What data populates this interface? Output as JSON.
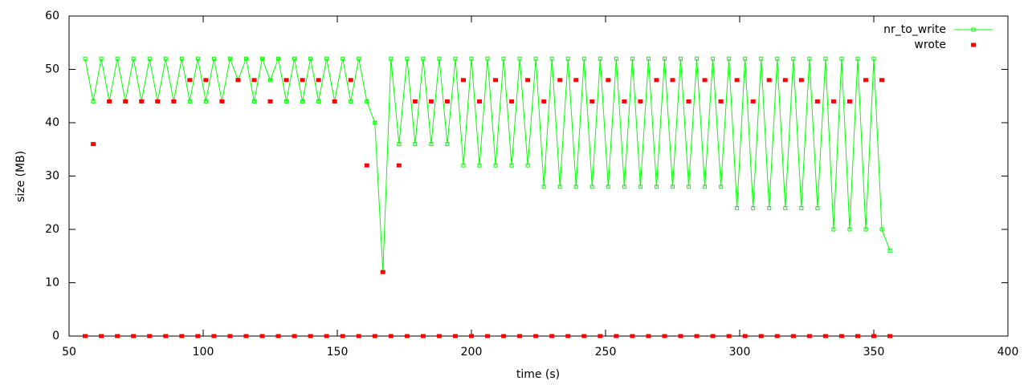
{
  "chart_data": {
    "type": "line",
    "xlabel": "time (s)",
    "ylabel": "size (MB)",
    "x": [
      56,
      59,
      62,
      65,
      68,
      71,
      74,
      77,
      80,
      83,
      86,
      89,
      92,
      95,
      98,
      101,
      104,
      107,
      110,
      113,
      116,
      119,
      122,
      125,
      128,
      131,
      134,
      137,
      140,
      143,
      146,
      149,
      152,
      155,
      158,
      161,
      164,
      167,
      170,
      173,
      176,
      179,
      182,
      185,
      188,
      191,
      194,
      197,
      200,
      203,
      206,
      209,
      212,
      215,
      218,
      221,
      224,
      227,
      230,
      233,
      236,
      239,
      242,
      245,
      248,
      251,
      254,
      257,
      260,
      263,
      266,
      269,
      272,
      275,
      278,
      281,
      284,
      287,
      290,
      293,
      296,
      299,
      302,
      305,
      308,
      311,
      314,
      317,
      320,
      323,
      326,
      329,
      332,
      335,
      338,
      341,
      344,
      347,
      350,
      353,
      356
    ],
    "series": [
      {
        "name": "nr_to_write",
        "color": "#00ff00",
        "style": "linespoints",
        "values": [
          52,
          44,
          52,
          44,
          52,
          44,
          52,
          44,
          52,
          44,
          52,
          44,
          52,
          44,
          52,
          44,
          52,
          44,
          52,
          48,
          52,
          44,
          52,
          48,
          52,
          44,
          52,
          44,
          52,
          44,
          52,
          44,
          52,
          44,
          52,
          44,
          40,
          12,
          52,
          36,
          52,
          36,
          52,
          36,
          52,
          36,
          52,
          32,
          52,
          32,
          52,
          32,
          52,
          32,
          52,
          32,
          52,
          28,
          52,
          28,
          52,
          28,
          52,
          28,
          52,
          28,
          52,
          28,
          52,
          28,
          52,
          28,
          52,
          28,
          52,
          28,
          52,
          28,
          52,
          28,
          52,
          24,
          52,
          24,
          52,
          24,
          52,
          24,
          52,
          24,
          52,
          24,
          52,
          20,
          52,
          20,
          52,
          20,
          52,
          20,
          16
        ]
      },
      {
        "name": "wrote",
        "color": "#ff0000",
        "style": "points",
        "values": [
          0,
          36,
          0,
          44,
          0,
          44,
          0,
          44,
          0,
          44,
          0,
          44,
          0,
          48,
          0,
          48,
          0,
          44,
          0,
          48,
          0,
          48,
          0,
          44,
          0,
          48,
          0,
          48,
          0,
          48,
          0,
          44,
          0,
          48,
          0,
          32,
          0,
          12,
          0,
          32,
          0,
          44,
          0,
          44,
          0,
          44,
          0,
          48,
          0,
          44,
          0,
          48,
          0,
          44,
          0,
          48,
          0,
          44,
          0,
          48,
          0,
          48,
          0,
          44,
          0,
          48,
          0,
          44,
          0,
          44,
          0,
          48,
          0,
          48,
          0,
          44,
          0,
          48,
          0,
          44,
          0,
          48,
          0,
          44,
          0,
          48,
          0,
          48,
          0,
          48,
          0,
          44,
          0,
          44,
          0,
          44,
          0,
          48,
          0,
          48,
          0
        ]
      }
    ],
    "xlim": [
      50,
      400
    ],
    "xticks": [
      50,
      100,
      150,
      200,
      250,
      300,
      350,
      400
    ],
    "ylim": [
      0,
      60
    ],
    "yticks": [
      0,
      10,
      20,
      30,
      40,
      50,
      60
    ],
    "grid": false,
    "legend": "top-right"
  }
}
